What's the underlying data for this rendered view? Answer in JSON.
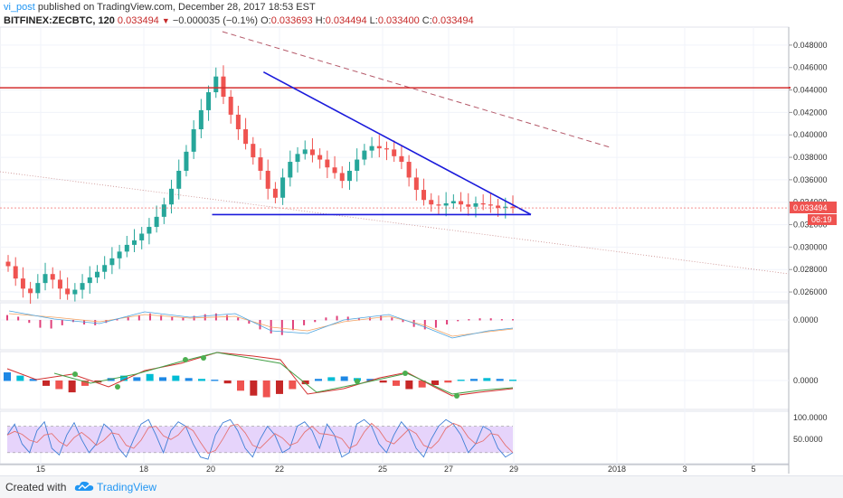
{
  "header": {
    "user": "vi_post",
    "published": "published on TradingView.com, December 28, 2017 18:53 EST",
    "symbol": "BITFINEX:ZECBTC, 120",
    "last": "0.033494",
    "change": "−0.000035 (−0.1%)",
    "o_label": "O:",
    "o_value": "0.033693",
    "h_label": "H:",
    "h_value": "0.034494",
    "l_label": "L:",
    "l_value": "0.033400",
    "c_label": "C:",
    "c_value": "0.033494"
  },
  "footer": {
    "created_with": "Created with",
    "brand": "TradingView"
  },
  "colors": {
    "bull": "#26a69a",
    "bear": "#ef5350",
    "trend": "#1a1adb",
    "resistance": "#d32f2f",
    "dashed": "#b55a6a",
    "rsi_band": "#e6d4fb"
  },
  "chart_data": [
    {
      "type": "candlestick",
      "title": "BITFINEX:ZECBTC, 120",
      "x_tick_labels": [
        "15",
        "18",
        "20",
        "22",
        "25",
        "27",
        "29",
        "2018",
        "3",
        "5"
      ],
      "y_tick_labels": [
        "0.048000",
        "0.046000",
        "0.044000",
        "0.042000",
        "0.040000",
        "0.038000",
        "0.036000",
        "0.034000",
        "0.032000",
        "0.030000",
        "0.028000",
        "0.026000"
      ],
      "ylim": [
        0.0252,
        0.0492
      ],
      "last_price_label": "0.033494",
      "countdown_label": "06:19",
      "close_series": [
        0.0283,
        0.0272,
        0.0263,
        0.0259,
        0.0268,
        0.0276,
        0.0271,
        0.0263,
        0.0258,
        0.0262,
        0.0268,
        0.0273,
        0.0278,
        0.0284,
        0.029,
        0.0296,
        0.0302,
        0.0306,
        0.0312,
        0.0318,
        0.0327,
        0.0338,
        0.0352,
        0.0368,
        0.0385,
        0.0405,
        0.0422,
        0.0438,
        0.0452,
        0.0434,
        0.0418,
        0.0405,
        0.0392,
        0.038,
        0.0368,
        0.0352,
        0.0344,
        0.0362,
        0.0376,
        0.0383,
        0.0387,
        0.0382,
        0.0378,
        0.0371,
        0.0366,
        0.0359,
        0.0368,
        0.0378,
        0.0386,
        0.039,
        0.0388,
        0.0387,
        0.0381,
        0.0376,
        0.0362,
        0.0351,
        0.0342,
        0.0338,
        0.0337,
        0.0339,
        0.0341,
        0.0338,
        0.0336,
        0.0339,
        0.0338,
        0.0337,
        0.0335,
        0.0336,
        0.0335
      ],
      "annotations": [
        {
          "name": "descending trendline",
          "points": [
            [
              21.5,
              0.0456
            ],
            [
              29.3,
              0.0329
            ]
          ]
        },
        {
          "name": "support line",
          "points": [
            [
              20.0,
              0.0329
            ],
            [
              29.3,
              0.0329
            ]
          ]
        },
        {
          "name": "resistance",
          "value": 0.0442
        },
        {
          "name": "long-term downtrend",
          "points": [
            [
              20.3,
              0.0492
            ],
            [
              31.6,
              0.0389
            ]
          ]
        }
      ]
    },
    {
      "type": "bar",
      "indicator": "MACD histogram",
      "y_tick_labels": [
        "0.0000"
      ],
      "values": [
        0.6,
        0.4,
        -0.3,
        -0.9,
        -1.0,
        -0.6,
        -0.2,
        -0.5,
        -0.6,
        -0.3,
        0.1,
        0.4,
        0.6,
        0.8,
        0.6,
        0.4,
        0.3,
        0.5,
        0.7,
        0.8,
        0.6,
        0.3,
        -0.4,
        -1.1,
        -1.6,
        -1.8,
        -1.2,
        -0.6,
        -0.2,
        0.3,
        0.5,
        0.4,
        0.2,
        0.3,
        0.5,
        0.3,
        -0.2,
        -0.8,
        -1.1,
        -0.9,
        -0.5,
        -0.1,
        0.1,
        0.2,
        0.2,
        0.1,
        0.1
      ]
    },
    {
      "type": "bar",
      "indicator": "Squeeze momentum",
      "y_tick_labels": [
        "0.0000"
      ],
      "values": [
        1.0,
        0.6,
        0.2,
        -0.6,
        -1.0,
        -1.4,
        -0.6,
        -0.2,
        0.3,
        0.6,
        0.4,
        0.8,
        0.4,
        0.6,
        0.3,
        0.2,
        0.1,
        -0.3,
        -1.2,
        -1.8,
        -2.0,
        -1.6,
        -1.0,
        -0.4,
        0.2,
        0.4,
        0.5,
        0.3,
        0.2,
        -0.2,
        -0.6,
        -1.0,
        -0.8,
        -0.5,
        -0.2,
        0.1,
        0.2,
        0.3,
        0.2,
        0.1
      ]
    },
    {
      "type": "line",
      "indicator": "Stochastic RSI",
      "y_tick_labels": [
        "100.0000",
        "50.0000"
      ],
      "ylim": [
        -5,
        110
      ],
      "band": [
        20,
        80
      ],
      "values": [
        60,
        85,
        40,
        20,
        70,
        90,
        30,
        15,
        60,
        88,
        50,
        20,
        40,
        85,
        70,
        30,
        10,
        50,
        85,
        95,
        60,
        20,
        70,
        90,
        80,
        40,
        10,
        5,
        60,
        88,
        95,
        70,
        30,
        10,
        50,
        80,
        60,
        20,
        30,
        80,
        90,
        70,
        30,
        85,
        60,
        10,
        20,
        85,
        95,
        80,
        40,
        20,
        60,
        90,
        70,
        30,
        10,
        50,
        80,
        95,
        85,
        60,
        20,
        40,
        80,
        70,
        30,
        10,
        20
      ]
    }
  ]
}
